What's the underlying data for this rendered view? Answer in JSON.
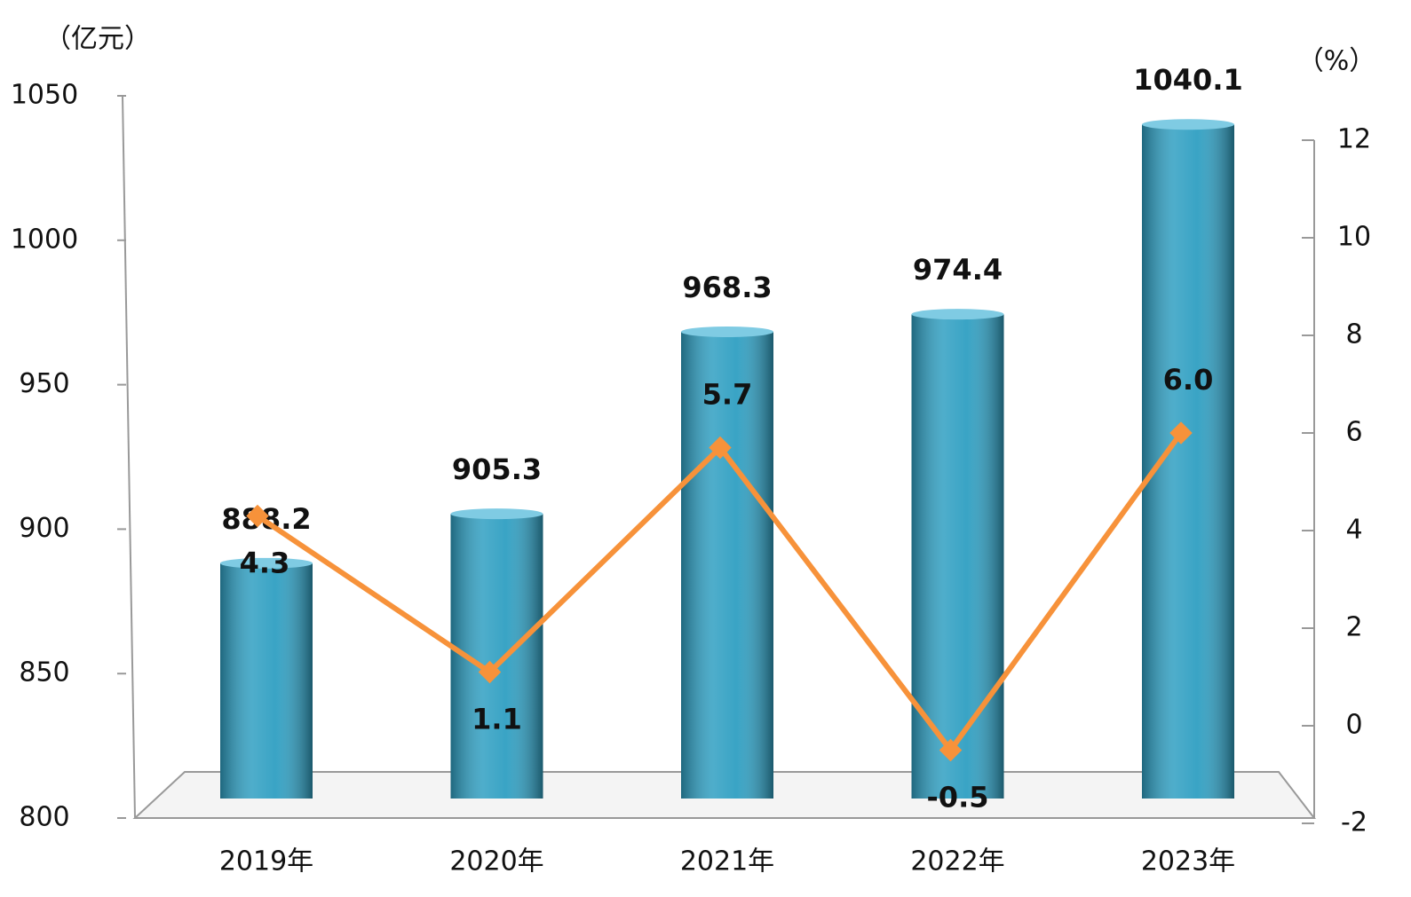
{
  "chart_data": {
    "type": "bar",
    "y_label": "（亿元）",
    "y2_label": "（%）",
    "categories": [
      "2019年",
      "2020年",
      "2021年",
      "2022年",
      "2023年"
    ],
    "series": [
      {
        "type": "bar",
        "color": "#2f9fc2",
        "values": [
          888.2,
          905.3,
          968.3,
          974.4,
          1040.1
        ]
      },
      {
        "type": "line",
        "color": "#f7923a",
        "axis": "y2",
        "values": [
          4.3,
          1.1,
          5.7,
          -0.5,
          6.0
        ],
        "value_labels": [
          "4.3",
          "1.1",
          "5.7",
          "-0.5",
          "6.0"
        ]
      }
    ],
    "ylim": [
      800,
      1050
    ],
    "yticks": [
      800,
      850,
      900,
      950,
      1000,
      1050
    ],
    "y2lim": [
      -2,
      12
    ],
    "y2ticks": [
      -2,
      0,
      2,
      4,
      6,
      8,
      10,
      12
    ],
    "grid": false
  }
}
